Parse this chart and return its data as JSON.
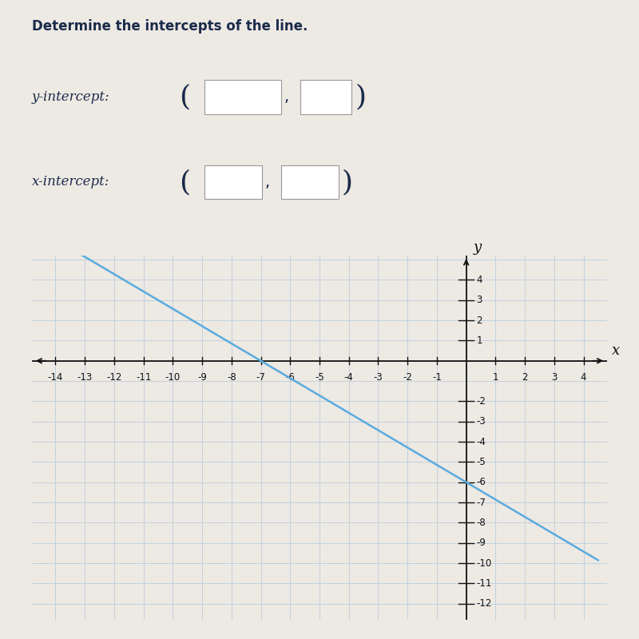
{
  "title": "Determine the intercepts of the line.",
  "y_intercept_label": "y-intercept:",
  "x_intercept_label": "x-intercept:",
  "line_slope": -0.857142857,
  "line_y_intercept": -6,
  "line_color": "#5aabdf",
  "line_width": 1.8,
  "xlim": [
    -14.8,
    4.8
  ],
  "ylim": [
    -12.8,
    5.2
  ],
  "bg_color": "#ede9e3",
  "grid_color": "#b0c8dc",
  "axis_color": "#111111",
  "box_edge_color": "#999999",
  "text_color": "#1a2a4a",
  "label_fontsize": 12,
  "tick_fontsize": 8.5,
  "title_fontsize": 12,
  "axis_label_fontsize": 13
}
